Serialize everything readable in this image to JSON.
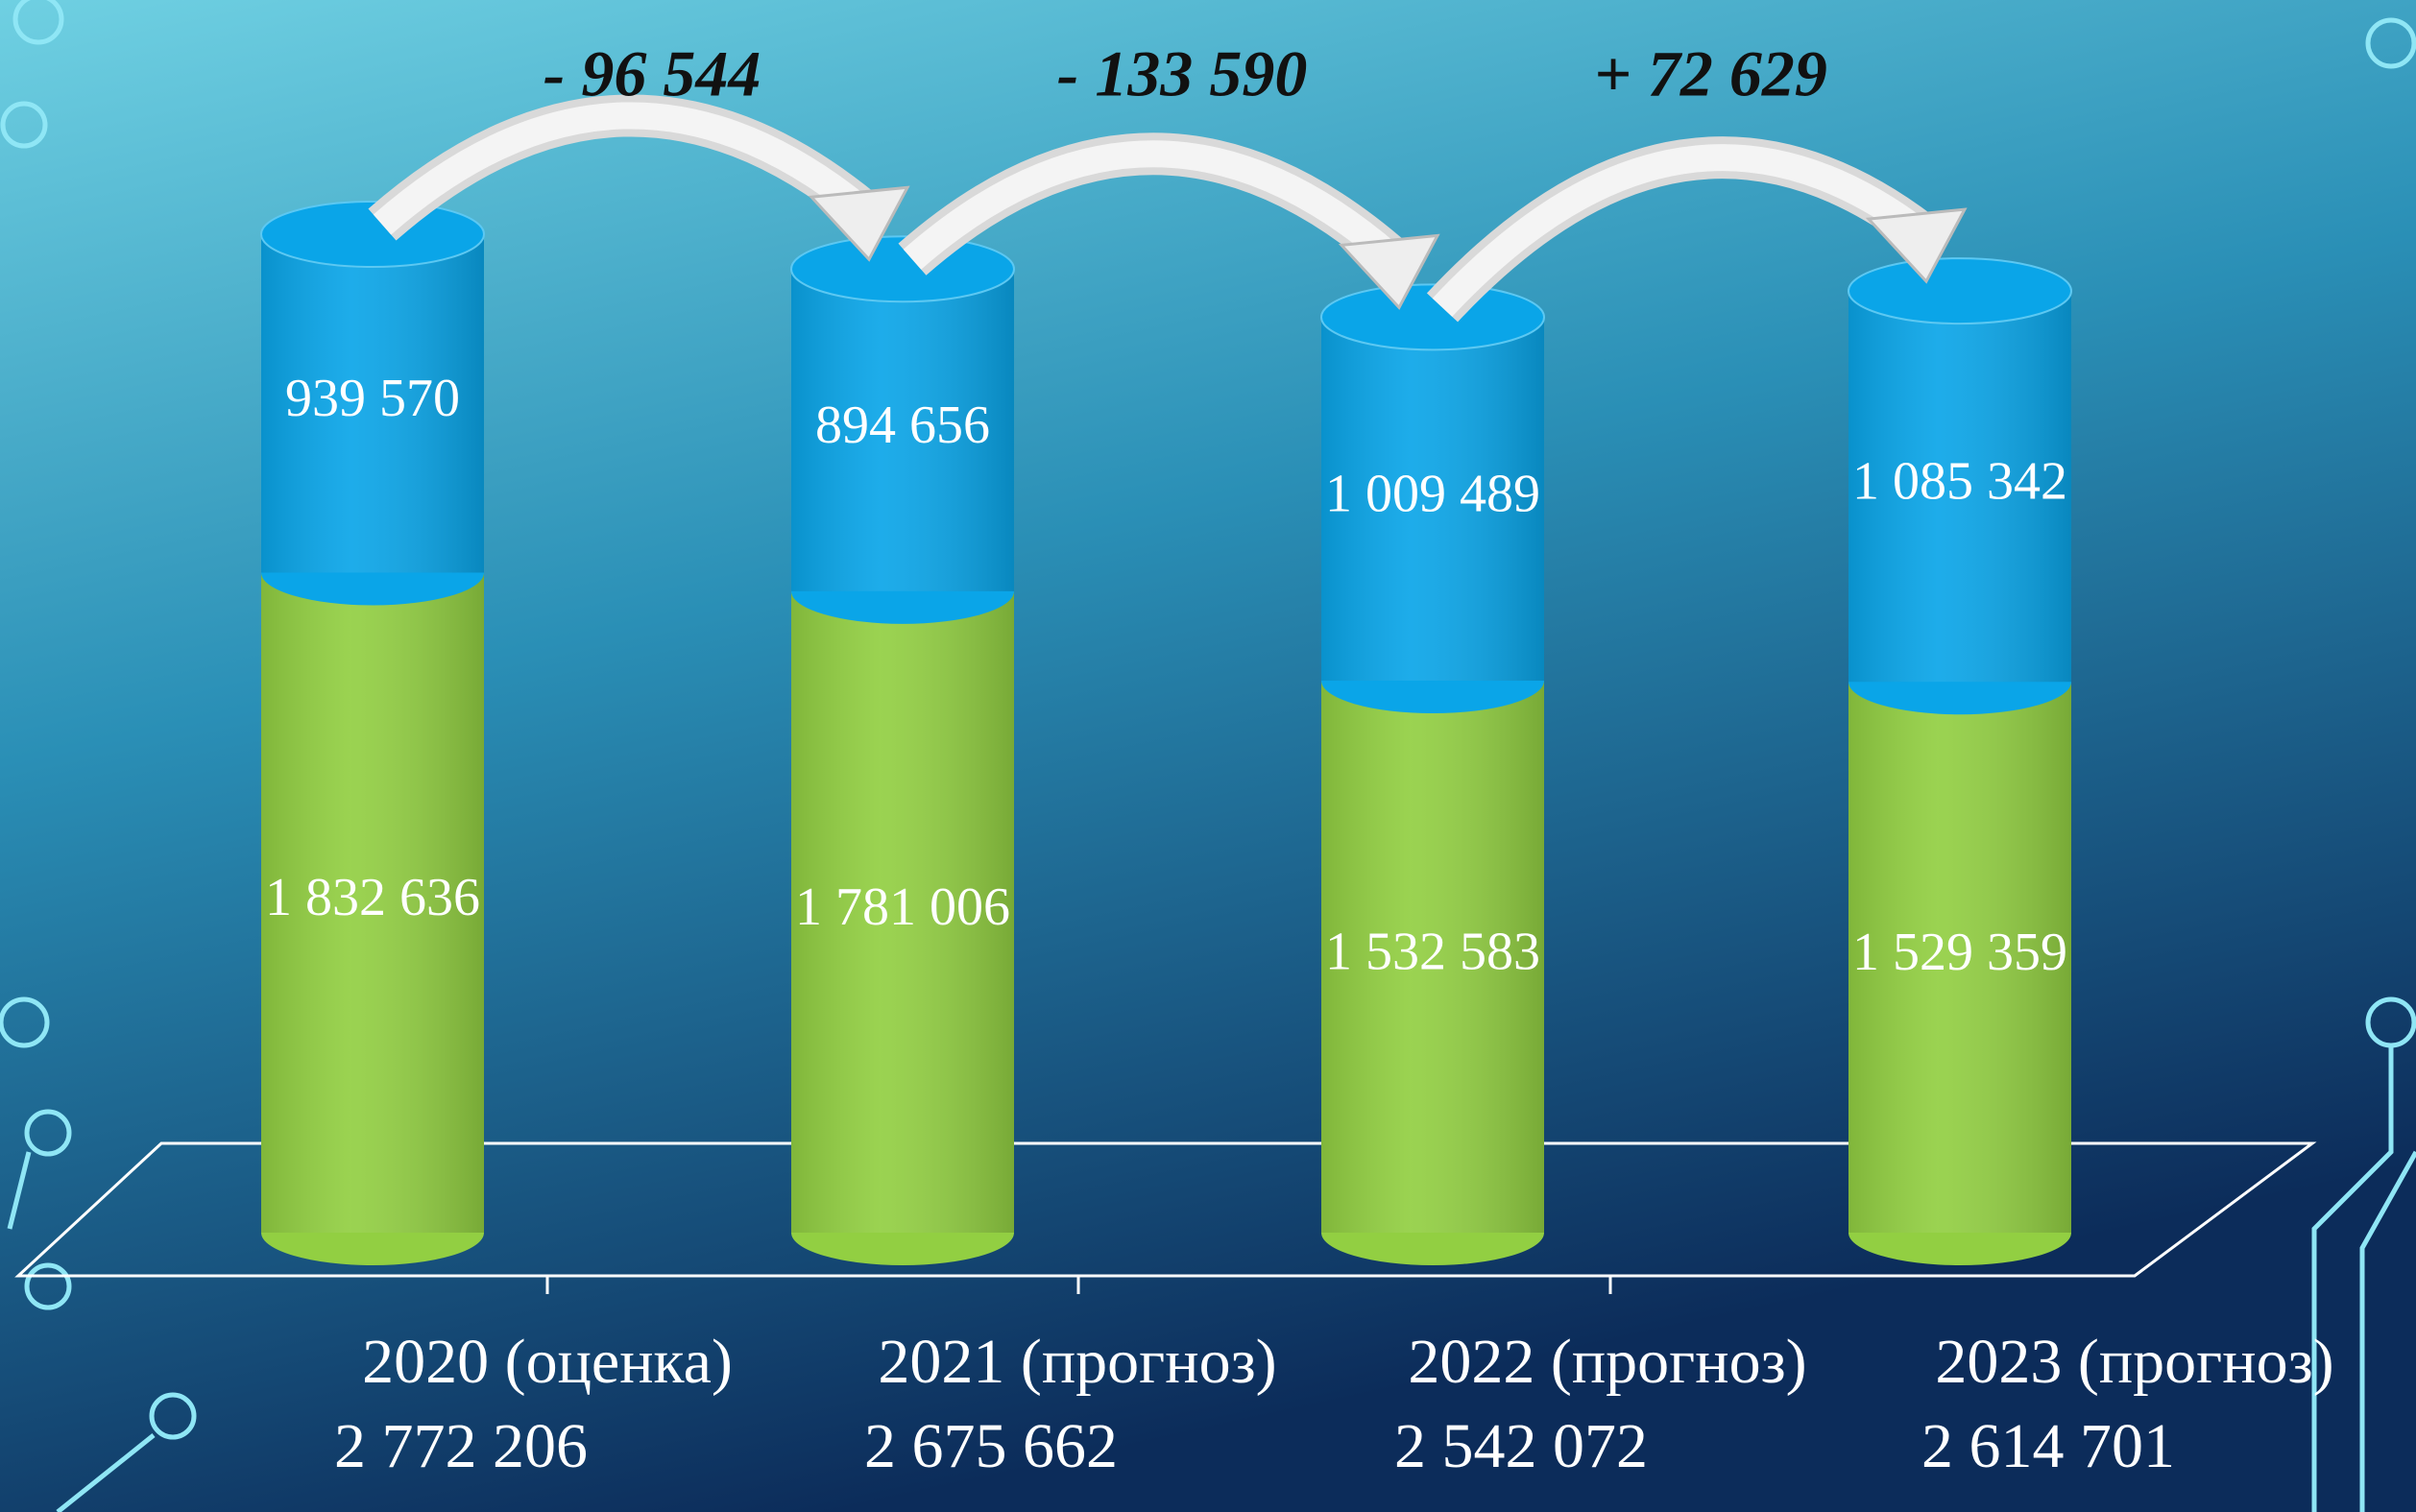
{
  "chart_data": {
    "type": "stacked-cylinder",
    "categories": [
      "2020 (оценка)",
      "2021 (прогноз)",
      "2022 (прогноз)",
      "2023 (прогноз)"
    ],
    "totals": [
      2772206,
      2675662,
      2542072,
      2614701
    ],
    "total_labels": [
      "2 772 206",
      "2 675 662",
      "2 542 072",
      "2 614 701"
    ],
    "series": [
      {
        "color": "#92cf42",
        "values": [
          1832636,
          1781006,
          1532583,
          1529359
        ],
        "value_labels": [
          "1 832 636",
          "1 781 006",
          "1 532 583",
          "1 529 359"
        ]
      },
      {
        "color": "#0aa5e8",
        "values": [
          939570,
          894656,
          1009489,
          1085342
        ],
        "value_labels": [
          "939 570",
          "894 656",
          "1 009 489",
          "1 085 342"
        ]
      }
    ],
    "annotations": [
      "- 96 544",
      "- 133 590",
      "+ 72 629"
    ]
  }
}
